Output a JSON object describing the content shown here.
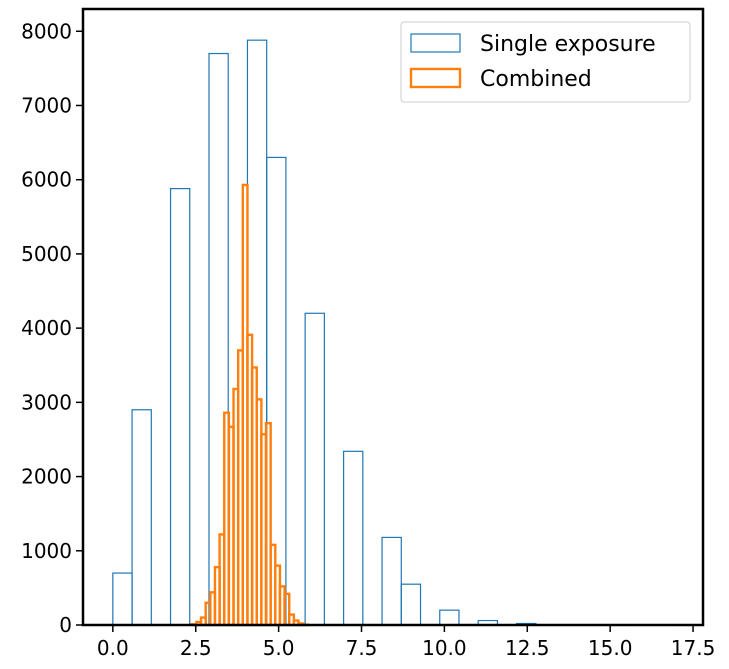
{
  "chart_data": {
    "type": "histogram",
    "title": "",
    "xlabel": "",
    "ylabel": "",
    "xlim": [
      -0.9,
      17.8
    ],
    "ylim": [
      0,
      8300
    ],
    "x_ticks": [
      0.0,
      2.5,
      5.0,
      7.5,
      10.0,
      12.5,
      15.0,
      17.5
    ],
    "x_tick_labels": [
      "0.0",
      "2.5",
      "5.0",
      "7.5",
      "10.0",
      "12.5",
      "15.0",
      "17.5"
    ],
    "y_ticks": [
      0,
      1000,
      2000,
      3000,
      4000,
      5000,
      6000,
      7000,
      8000
    ],
    "y_tick_labels": [
      "0",
      "1000",
      "2000",
      "3000",
      "4000",
      "5000",
      "6000",
      "7000",
      "8000"
    ],
    "grid": false,
    "legend_position": "top-right",
    "series": [
      {
        "name": "Single exposure",
        "color": "#1f77b4",
        "style": "step-outline",
        "bins": [
          {
            "x0": 0.0,
            "x1": 0.58,
            "count": 700
          },
          {
            "x0": 0.58,
            "x1": 1.16,
            "count": 2900
          },
          {
            "x0": 1.16,
            "x1": 1.74,
            "count": 0
          },
          {
            "x0": 1.74,
            "x1": 2.32,
            "count": 5880
          },
          {
            "x0": 2.32,
            "x1": 2.9,
            "count": 0
          },
          {
            "x0": 2.9,
            "x1": 3.48,
            "count": 7700
          },
          {
            "x0": 3.48,
            "x1": 4.06,
            "count": 0
          },
          {
            "x0": 4.06,
            "x1": 4.64,
            "count": 7880
          },
          {
            "x0": 4.64,
            "x1": 5.22,
            "count": 6300
          },
          {
            "x0": 5.22,
            "x1": 5.8,
            "count": 0
          },
          {
            "x0": 5.8,
            "x1": 6.38,
            "count": 4200
          },
          {
            "x0": 6.38,
            "x1": 6.96,
            "count": 0
          },
          {
            "x0": 6.96,
            "x1": 7.54,
            "count": 2340
          },
          {
            "x0": 7.54,
            "x1": 8.12,
            "count": 0
          },
          {
            "x0": 8.12,
            "x1": 8.7,
            "count": 1180
          },
          {
            "x0": 8.7,
            "x1": 9.28,
            "count": 550
          },
          {
            "x0": 9.28,
            "x1": 9.86,
            "count": 0
          },
          {
            "x0": 9.86,
            "x1": 10.44,
            "count": 200
          },
          {
            "x0": 10.44,
            "x1": 11.02,
            "count": 0
          },
          {
            "x0": 11.02,
            "x1": 11.6,
            "count": 60
          },
          {
            "x0": 11.6,
            "x1": 12.18,
            "count": 0
          },
          {
            "x0": 12.18,
            "x1": 12.76,
            "count": 20
          },
          {
            "x0": 12.76,
            "x1": 13.34,
            "count": 5
          },
          {
            "x0": 13.34,
            "x1": 13.92,
            "count": 3
          },
          {
            "x0": 13.92,
            "x1": 14.5,
            "count": 2
          },
          {
            "x0": 14.5,
            "x1": 15.08,
            "count": 1
          },
          {
            "x0": 15.08,
            "x1": 15.66,
            "count": 1
          },
          {
            "x0": 15.66,
            "x1": 16.24,
            "count": 0
          },
          {
            "x0": 16.24,
            "x1": 16.82,
            "count": 0
          },
          {
            "x0": 16.82,
            "x1": 17.4,
            "count": 1
          }
        ]
      },
      {
        "name": "Combined",
        "color": "#ff7f0e",
        "style": "step-outline",
        "bins": [
          {
            "x0": 2.38,
            "x1": 2.52,
            "count": 10
          },
          {
            "x0": 2.52,
            "x1": 2.66,
            "count": 40
          },
          {
            "x0": 2.66,
            "x1": 2.8,
            "count": 100
          },
          {
            "x0": 2.8,
            "x1": 2.94,
            "count": 300
          },
          {
            "x0": 2.94,
            "x1": 3.08,
            "count": 440
          },
          {
            "x0": 3.08,
            "x1": 3.22,
            "count": 780
          },
          {
            "x0": 3.22,
            "x1": 3.36,
            "count": 1220
          },
          {
            "x0": 3.36,
            "x1": 3.5,
            "count": 2860
          },
          {
            "x0": 3.5,
            "x1": 3.64,
            "count": 2670
          },
          {
            "x0": 3.64,
            "x1": 3.78,
            "count": 3180
          },
          {
            "x0": 3.78,
            "x1": 3.92,
            "count": 3700
          },
          {
            "x0": 3.92,
            "x1": 4.06,
            "count": 5930
          },
          {
            "x0": 4.06,
            "x1": 4.2,
            "count": 3910
          },
          {
            "x0": 4.2,
            "x1": 4.34,
            "count": 3470
          },
          {
            "x0": 4.34,
            "x1": 4.48,
            "count": 3040
          },
          {
            "x0": 4.48,
            "x1": 4.62,
            "count": 2570
          },
          {
            "x0": 4.62,
            "x1": 4.76,
            "count": 2720
          },
          {
            "x0": 4.76,
            "x1": 4.9,
            "count": 1080
          },
          {
            "x0": 4.9,
            "x1": 5.04,
            "count": 800
          },
          {
            "x0": 5.04,
            "x1": 5.18,
            "count": 520
          },
          {
            "x0": 5.18,
            "x1": 5.32,
            "count": 420
          },
          {
            "x0": 5.32,
            "x1": 5.46,
            "count": 140
          },
          {
            "x0": 5.46,
            "x1": 5.6,
            "count": 60
          },
          {
            "x0": 5.6,
            "x1": 5.74,
            "count": 20
          },
          {
            "x0": 5.74,
            "x1": 5.88,
            "count": 5
          }
        ]
      }
    ]
  }
}
